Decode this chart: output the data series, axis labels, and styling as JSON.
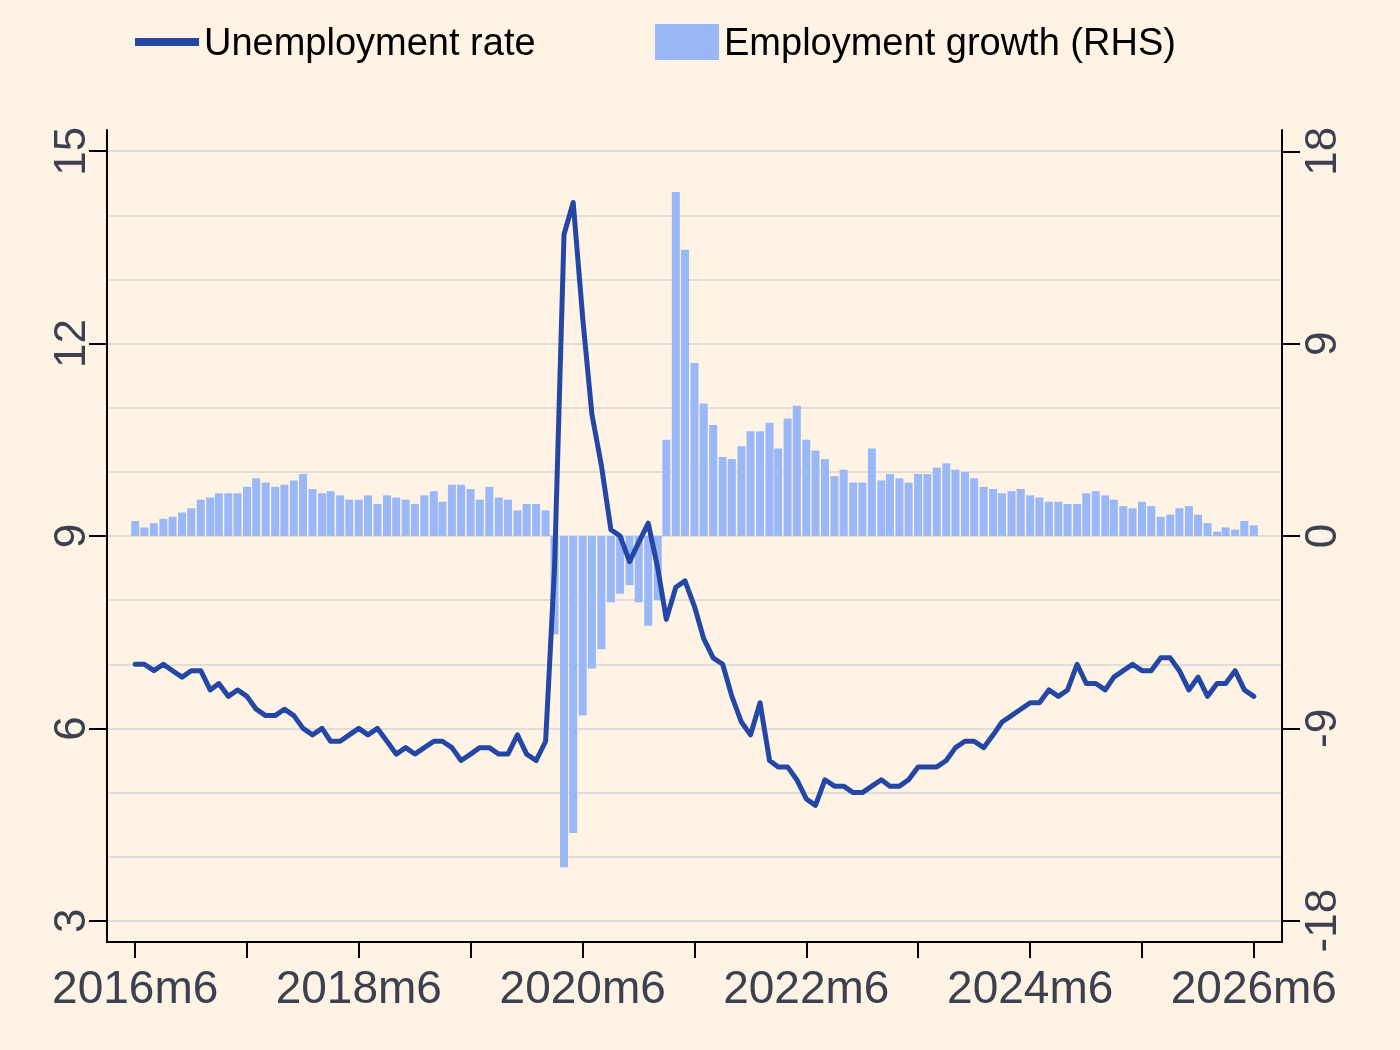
{
  "chart_data": {
    "type": "line",
    "x": [
      "2016-06",
      "2016-07",
      "2016-08",
      "2016-09",
      "2016-10",
      "2016-11",
      "2016-12",
      "2017-01",
      "2017-02",
      "2017-03",
      "2017-04",
      "2017-05",
      "2017-06",
      "2017-07",
      "2017-08",
      "2017-09",
      "2017-10",
      "2017-11",
      "2017-12",
      "2018-01",
      "2018-02",
      "2018-03",
      "2018-04",
      "2018-05",
      "2018-06",
      "2018-07",
      "2018-08",
      "2018-09",
      "2018-10",
      "2018-11",
      "2018-12",
      "2019-01",
      "2019-02",
      "2019-03",
      "2019-04",
      "2019-05",
      "2019-06",
      "2019-07",
      "2019-08",
      "2019-09",
      "2019-10",
      "2019-11",
      "2019-12",
      "2020-01",
      "2020-02",
      "2020-03",
      "2020-04",
      "2020-05",
      "2020-06",
      "2020-07",
      "2020-08",
      "2020-09",
      "2020-10",
      "2020-11",
      "2020-12",
      "2021-01",
      "2021-02",
      "2021-03",
      "2021-04",
      "2021-05",
      "2021-06",
      "2021-07",
      "2021-08",
      "2021-09",
      "2021-10",
      "2021-11",
      "2021-12",
      "2022-01",
      "2022-02",
      "2022-03",
      "2022-04",
      "2022-05",
      "2022-06",
      "2022-07",
      "2022-08",
      "2022-09",
      "2022-10",
      "2022-11",
      "2022-12",
      "2023-01",
      "2023-02",
      "2023-03",
      "2023-04",
      "2023-05",
      "2023-06",
      "2023-07",
      "2023-08",
      "2023-09",
      "2023-10",
      "2023-11",
      "2023-12",
      "2024-01",
      "2024-02",
      "2024-03",
      "2024-04",
      "2024-05",
      "2024-06",
      "2024-07",
      "2024-08",
      "2024-09",
      "2024-10",
      "2024-11",
      "2024-12",
      "2025-01",
      "2025-02",
      "2025-03",
      "2025-04",
      "2025-05",
      "2025-06",
      "2025-07",
      "2025-08",
      "2025-09",
      "2025-10",
      "2025-11",
      "2025-12",
      "2026-01",
      "2026-02",
      "2026-03",
      "2026-04",
      "2026-05",
      "2026-06"
    ],
    "series": [
      {
        "name": "Unemployment rate",
        "color": "#2447a6",
        "values": [
          7.0,
          7.0,
          6.9,
          7.0,
          6.9,
          6.8,
          6.9,
          6.9,
          6.6,
          6.7,
          6.5,
          6.6,
          6.5,
          6.3,
          6.2,
          6.2,
          6.3,
          6.2,
          6.0,
          5.9,
          6.0,
          5.8,
          5.8,
          5.9,
          6.0,
          5.9,
          6.0,
          5.8,
          5.6,
          5.7,
          5.6,
          5.7,
          5.8,
          5.8,
          5.7,
          5.5,
          5.6,
          5.7,
          5.7,
          5.6,
          5.6,
          5.9,
          5.6,
          5.5,
          5.8,
          8.5,
          13.7,
          14.2,
          12.4,
          10.9,
          10.1,
          9.1,
          9.0,
          8.6,
          8.9,
          9.2,
          8.5,
          7.7,
          8.2,
          8.3,
          7.9,
          7.4,
          7.1,
          7.0,
          6.5,
          6.1,
          5.9,
          6.4,
          5.5,
          5.4,
          5.4,
          5.2,
          4.9,
          4.8,
          5.2,
          5.1,
          5.1,
          5.0,
          5.0,
          5.1,
          5.2,
          5.1,
          5.1,
          5.2,
          5.4,
          5.4,
          5.4,
          5.5,
          5.7,
          5.8,
          5.8,
          5.7,
          5.9,
          6.1,
          6.2,
          6.3,
          6.4,
          6.4,
          6.6,
          6.5,
          6.6,
          7.0,
          6.7,
          6.7,
          6.6,
          6.8,
          6.9,
          7.0,
          6.9,
          6.9,
          7.1,
          7.1,
          6.9,
          6.6,
          6.8,
          6.5,
          6.7,
          6.7,
          6.9,
          6.6,
          6.5
        ]
      },
      {
        "type": "bar",
        "axis": "y2",
        "name": "Employment growth (RHS)",
        "color": "#9ab8f7",
        "values": [
          0.7,
          0.4,
          0.6,
          0.8,
          0.9,
          1.1,
          1.3,
          1.7,
          1.8,
          2.0,
          2.0,
          2.0,
          2.3,
          2.7,
          2.5,
          2.3,
          2.4,
          2.6,
          2.9,
          2.2,
          2.0,
          2.1,
          1.9,
          1.7,
          1.7,
          1.9,
          1.5,
          1.9,
          1.8,
          1.7,
          1.5,
          1.9,
          2.1,
          1.6,
          2.4,
          2.4,
          2.2,
          1.7,
          2.3,
          1.8,
          1.7,
          1.2,
          1.5,
          1.5,
          1.2,
          -4.6,
          -15.5,
          -13.9,
          -8.4,
          -6.2,
          -5.3,
          -3.1,
          -2.7,
          -2.3,
          -3.1,
          -4.2,
          -3.0,
          4.5,
          16.1,
          13.4,
          8.1,
          6.2,
          5.2,
          3.7,
          3.6,
          4.2,
          4.9,
          4.9,
          5.3,
          4.1,
          5.5,
          6.1,
          4.5,
          4.0,
          3.6,
          2.8,
          3.1,
          2.5,
          2.5,
          4.1,
          2.6,
          2.9,
          2.7,
          2.5,
          2.9,
          2.9,
          3.2,
          3.4,
          3.1,
          3.0,
          2.7,
          2.3,
          2.2,
          2.0,
          2.1,
          2.2,
          1.9,
          1.8,
          1.6,
          1.6,
          1.5,
          1.5,
          2.0,
          2.1,
          1.9,
          1.7,
          1.4,
          1.3,
          1.6,
          1.4,
          0.9,
          1.0,
          1.3,
          1.4,
          1.0,
          0.6,
          0.2,
          0.4,
          0.3,
          0.7,
          0.5
        ]
      }
    ],
    "xlim": [
      "2016-03",
      "2026-09"
    ],
    "xticks": [
      {
        "value": "2016-06",
        "label": "2016m6"
      },
      {
        "value": "2017-06",
        "label": null
      },
      {
        "value": "2018-06",
        "label": "2018m6"
      },
      {
        "value": "2019-06",
        "label": null
      },
      {
        "value": "2020-06",
        "label": "2020m6"
      },
      {
        "value": "2021-06",
        "label": null
      },
      {
        "value": "2022-06",
        "label": "2022m6"
      },
      {
        "value": "2023-06",
        "label": null
      },
      {
        "value": "2024-06",
        "label": "2024m6"
      },
      {
        "value": "2025-06",
        "label": null
      },
      {
        "value": "2026-06",
        "label": "2026m6"
      }
    ],
    "ylim": [
      2.67,
      15.33
    ],
    "yticks": [
      3,
      {
        "value": 4,
        "label": null
      },
      {
        "value": 5,
        "label": null
      },
      6,
      {
        "value": 7,
        "label": null
      },
      {
        "value": 8,
        "label": null
      },
      9,
      {
        "value": 10,
        "label": null
      },
      {
        "value": 11,
        "label": null
      },
      12,
      {
        "value": 13,
        "label": null
      },
      {
        "value": 14,
        "label": null
      },
      15
    ],
    "y2lim": [
      -19,
      19
    ],
    "y2ticks": [
      -18,
      -9,
      0,
      9,
      18
    ],
    "grid": "y",
    "legend": "top",
    "marker": "none"
  }
}
